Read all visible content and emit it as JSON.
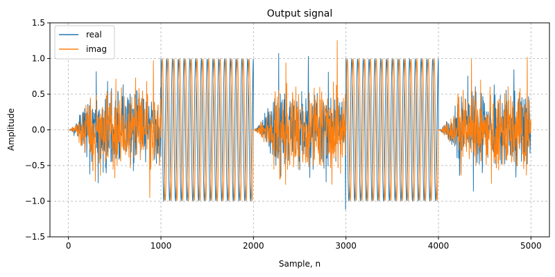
{
  "chart_data": {
    "type": "line",
    "title": "Output signal",
    "xlabel": "Sample, n",
    "ylabel": "Amplitude",
    "xlim": [
      -200,
      5200
    ],
    "ylim": [
      -1.5,
      1.5
    ],
    "xticks": [
      0,
      1000,
      2000,
      3000,
      4000,
      5000
    ],
    "xtick_labels": [
      "0",
      "1000",
      "2000",
      "3000",
      "4000",
      "5000"
    ],
    "yticks": [
      -1.5,
      -1.0,
      -0.5,
      0.0,
      0.5,
      1.0,
      1.5
    ],
    "ytick_labels": [
      "−1.5",
      "−1.0",
      "−0.5",
      "0.0",
      "0.5",
      "1.0",
      "1.5"
    ],
    "grid": true,
    "legend_position": "top-left",
    "series": [
      {
        "name": "real",
        "color": "#1f77b4"
      },
      {
        "name": "imag",
        "color": "#ff7f0e"
      }
    ],
    "segments": [
      {
        "x_range": [
          0,
          1000
        ],
        "kind": "noise",
        "amplitude_envelope": "rises from 0 to about 0.8 by n≈250, occasional peaks to about ±1.5"
      },
      {
        "x_range": [
          1000,
          2000
        ],
        "kind": "sinusoid",
        "amplitude": 1.0,
        "cycles": 16
      },
      {
        "x_range": [
          2000,
          3000
        ],
        "kind": "noise",
        "amplitude_envelope": "rises from 0 to about 0.8 by n≈2250, occasional peaks to about ±1.5"
      },
      {
        "x_range": [
          3000,
          4000
        ],
        "kind": "sinusoid",
        "amplitude": 1.0,
        "cycles": 16
      },
      {
        "x_range": [
          4000,
          5000
        ],
        "kind": "noise",
        "amplitude_envelope": "rises from 0 to about 0.8 by n≈4250, occasional peaks to about ±1.5"
      }
    ]
  }
}
